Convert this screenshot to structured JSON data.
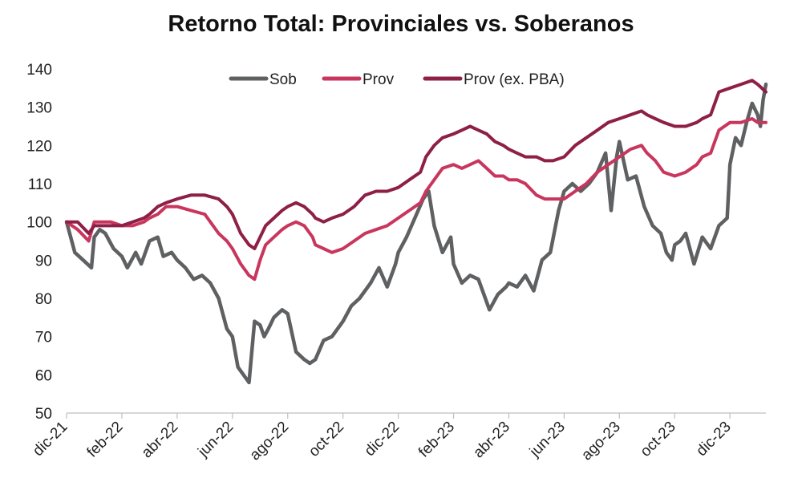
{
  "chart_data": {
    "type": "line",
    "title": "Retorno Total: Provinciales vs. Soberanos",
    "xlabel": "",
    "ylabel": "",
    "ylim": [
      50,
      140
    ],
    "yticks": [
      "50",
      "60",
      "70",
      "80",
      "90",
      "100",
      "110",
      "120",
      "130",
      "140"
    ],
    "x_index_range": [
      0,
      25.3
    ],
    "categories": [
      "dic-21",
      "feb-22",
      "abr-22",
      "jun-22",
      "ago-22",
      "oct-22",
      "dic-22",
      "feb-23",
      "abr-23",
      "jun-23",
      "ago-23",
      "oct-23",
      "dic-23"
    ],
    "category_positions": [
      0,
      2,
      4,
      6,
      8,
      10,
      12,
      14,
      16,
      18,
      20,
      22,
      24
    ],
    "legend_position": "top",
    "colors": {
      "Sob": "#5f6062",
      "Prov": "#c9365d",
      "Prov (ex. PBA)": "#8e1f47"
    },
    "series": [
      {
        "name": "Sob",
        "x": [
          0,
          0.3,
          0.6,
          0.9,
          1.0,
          1.2,
          1.4,
          1.7,
          2.0,
          2.2,
          2.5,
          2.7,
          3.0,
          3.3,
          3.5,
          3.8,
          4.0,
          4.3,
          4.6,
          4.9,
          5.2,
          5.5,
          5.8,
          6.0,
          6.2,
          6.4,
          6.6,
          6.8,
          7.0,
          7.15,
          7.3,
          7.5,
          7.8,
          8.0,
          8.3,
          8.6,
          8.8,
          9.0,
          9.3,
          9.6,
          9.9,
          10.0,
          10.3,
          10.6,
          11.0,
          11.3,
          11.6,
          11.9,
          12.0,
          12.3,
          12.6,
          12.9,
          13.1,
          13.3,
          13.6,
          13.9,
          14.0,
          14.3,
          14.6,
          14.9,
          15.1,
          15.3,
          15.6,
          15.9,
          16.0,
          16.3,
          16.6,
          16.9,
          17.2,
          17.5,
          17.8,
          18.0,
          18.3,
          18.6,
          18.9,
          19.2,
          19.5,
          19.7,
          19.9,
          20.0,
          20.3,
          20.6,
          20.9,
          21.2,
          21.5,
          21.7,
          21.9,
          22.0,
          22.2,
          22.4,
          22.7,
          23.0,
          23.3,
          23.6,
          23.9,
          24.0,
          24.2,
          24.4,
          24.6,
          24.8,
          25.0,
          25.1,
          25.2,
          25.3
        ],
        "values": [
          100,
          92,
          90,
          88,
          96,
          98,
          97,
          93,
          91,
          88,
          92,
          89,
          95,
          96,
          91,
          92,
          90,
          88,
          85,
          86,
          84,
          80,
          72,
          70,
          62,
          60,
          58,
          74,
          73,
          70,
          72,
          75,
          77,
          76,
          66,
          64,
          63,
          64,
          69,
          70,
          73,
          74,
          78,
          80,
          84,
          88,
          83,
          89,
          92,
          96,
          101,
          106,
          108,
          99,
          92,
          96,
          89,
          84,
          86,
          85,
          81,
          77,
          81,
          83,
          84,
          83,
          86,
          82,
          90,
          92,
          103,
          108,
          110,
          108,
          110,
          113,
          118,
          103,
          117,
          121,
          111,
          112,
          104,
          99,
          97,
          92,
          90,
          94,
          95,
          97,
          89,
          96,
          93,
          99,
          101,
          115,
          122,
          120,
          126,
          131,
          128,
          125,
          132,
          136
        ]
      },
      {
        "name": "Prov",
        "x": [
          0,
          0.4,
          0.8,
          1.0,
          1.2,
          1.6,
          2.0,
          2.4,
          2.8,
          3.0,
          3.3,
          3.6,
          4.0,
          4.5,
          5.0,
          5.5,
          5.8,
          6.0,
          6.3,
          6.6,
          6.8,
          7.0,
          7.2,
          7.5,
          7.8,
          8.0,
          8.3,
          8.6,
          8.9,
          9.0,
          9.3,
          9.6,
          10.0,
          10.4,
          10.8,
          11.2,
          11.6,
          12.0,
          12.4,
          12.8,
          13.0,
          13.3,
          13.6,
          14.0,
          14.3,
          14.6,
          14.9,
          15.2,
          15.5,
          15.8,
          16.0,
          16.3,
          16.6,
          17.0,
          17.3,
          17.6,
          18.0,
          18.4,
          18.8,
          19.2,
          19.6,
          20.0,
          20.4,
          20.8,
          21.0,
          21.3,
          21.6,
          22.0,
          22.4,
          22.8,
          23.0,
          23.3,
          23.6,
          24.0,
          24.4,
          24.8,
          25.0,
          25.3
        ],
        "values": [
          100,
          98,
          95,
          100,
          100,
          100,
          99,
          99,
          100,
          101,
          102,
          104,
          104,
          103,
          102,
          97,
          95,
          93,
          89,
          86,
          85,
          90,
          94,
          96,
          98,
          99,
          100,
          99,
          96,
          94,
          93,
          92,
          93,
          95,
          97,
          98,
          99,
          101,
          103,
          105,
          108,
          111,
          114,
          115,
          114,
          115,
          116,
          114,
          112,
          112,
          111,
          111,
          110,
          107,
          106,
          106,
          106,
          108,
          110,
          113,
          115,
          117,
          119,
          120,
          118,
          116,
          113,
          112,
          113,
          115,
          117,
          118,
          124,
          126,
          126,
          127,
          126,
          126
        ]
      },
      {
        "name": "Prov (ex. PBA)",
        "x": [
          0,
          0.4,
          0.8,
          1.0,
          1.3,
          1.6,
          2.0,
          2.4,
          2.8,
          3.0,
          3.3,
          3.6,
          4.0,
          4.5,
          5.0,
          5.5,
          5.8,
          6.0,
          6.3,
          6.6,
          6.8,
          7.0,
          7.2,
          7.5,
          7.8,
          8.0,
          8.3,
          8.6,
          8.9,
          9.0,
          9.3,
          9.6,
          10.0,
          10.4,
          10.8,
          11.2,
          11.6,
          12.0,
          12.4,
          12.8,
          13.0,
          13.3,
          13.6,
          14.0,
          14.3,
          14.6,
          14.9,
          15.2,
          15.5,
          15.8,
          16.0,
          16.3,
          16.6,
          17.0,
          17.3,
          17.6,
          18.0,
          18.4,
          18.8,
          19.2,
          19.6,
          20.0,
          20.4,
          20.8,
          21.0,
          21.3,
          21.6,
          22.0,
          22.4,
          22.8,
          23.0,
          23.3,
          23.6,
          24.0,
          24.4,
          24.8,
          25.0,
          25.3
        ],
        "values": [
          100,
          100,
          97,
          99,
          99,
          99,
          99,
          100,
          101,
          102,
          104,
          105,
          106,
          107,
          107,
          106,
          104,
          102,
          97,
          94,
          93,
          96,
          99,
          101,
          103,
          104,
          105,
          104,
          102,
          101,
          100,
          101,
          102,
          104,
          107,
          108,
          108,
          109,
          111,
          113,
          117,
          120,
          122,
          123,
          124,
          125,
          124,
          123,
          121,
          120,
          119,
          118,
          117,
          117,
          116,
          116,
          117,
          120,
          122,
          124,
          126,
          127,
          128,
          129,
          128,
          127,
          126,
          125,
          125,
          126,
          127,
          128,
          134,
          135,
          136,
          137,
          136,
          134
        ]
      }
    ]
  }
}
